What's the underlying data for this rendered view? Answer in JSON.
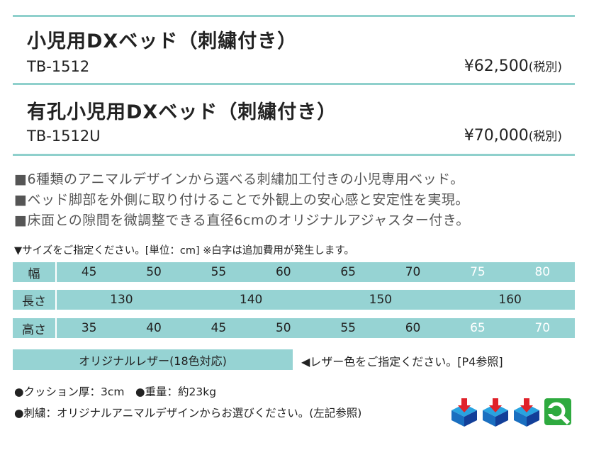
{
  "products": [
    {
      "name": "小児用DXベッド（刺繍付き）",
      "code": "TB-1512",
      "price": "¥62,500",
      "tax": "(税別)"
    },
    {
      "name": "有孔小児用DXベッド（刺繍付き）",
      "code": "TB-1512U",
      "price": "¥70,000",
      "tax": "(税別)"
    }
  ],
  "features": [
    "■6種類のアニマルデザインから選べる刺繍加工付きの小児専用ベッド。",
    "■ベッド脚部を外側に取り付けることで外観上の安心感と安定性を実現。",
    "■床面との隙間を微調整できる直径6cmのオリジナルアジャスター付き。"
  ],
  "size_note": "▼サイズをご指定ください。[単位：cm] ※白字は追加費用が発生します。",
  "size_table": {
    "width": {
      "label": "幅",
      "values": [
        "45",
        "50",
        "55",
        "60",
        "65",
        "70",
        "75",
        "80"
      ]
    },
    "length": {
      "label": "長さ",
      "values": [
        "130",
        "140",
        "150",
        "160"
      ]
    },
    "height": {
      "label": "高さ",
      "values": [
        "35",
        "40",
        "45",
        "50",
        "55",
        "60",
        "65",
        "70"
      ]
    },
    "extra_cost_value_color": "#ffffff"
  },
  "leather": {
    "label": "オリジナルレザー(18色対応)",
    "note": "◀レザー色をご指定ください。[P4参照]"
  },
  "specs": {
    "cushion": "●クッション厚：3cm　●重量：約23kg",
    "embroidery": "●刺繍：オリジナルアニマルデザインからお選びください。(左記参照)"
  },
  "icons": [
    "delivery-box-icon",
    "delivery-box-icon",
    "delivery-box-icon",
    "maintenance-wrench-icon"
  ],
  "colors": {
    "accent": "#96d3d3",
    "rule": "#8fd0cc"
  }
}
